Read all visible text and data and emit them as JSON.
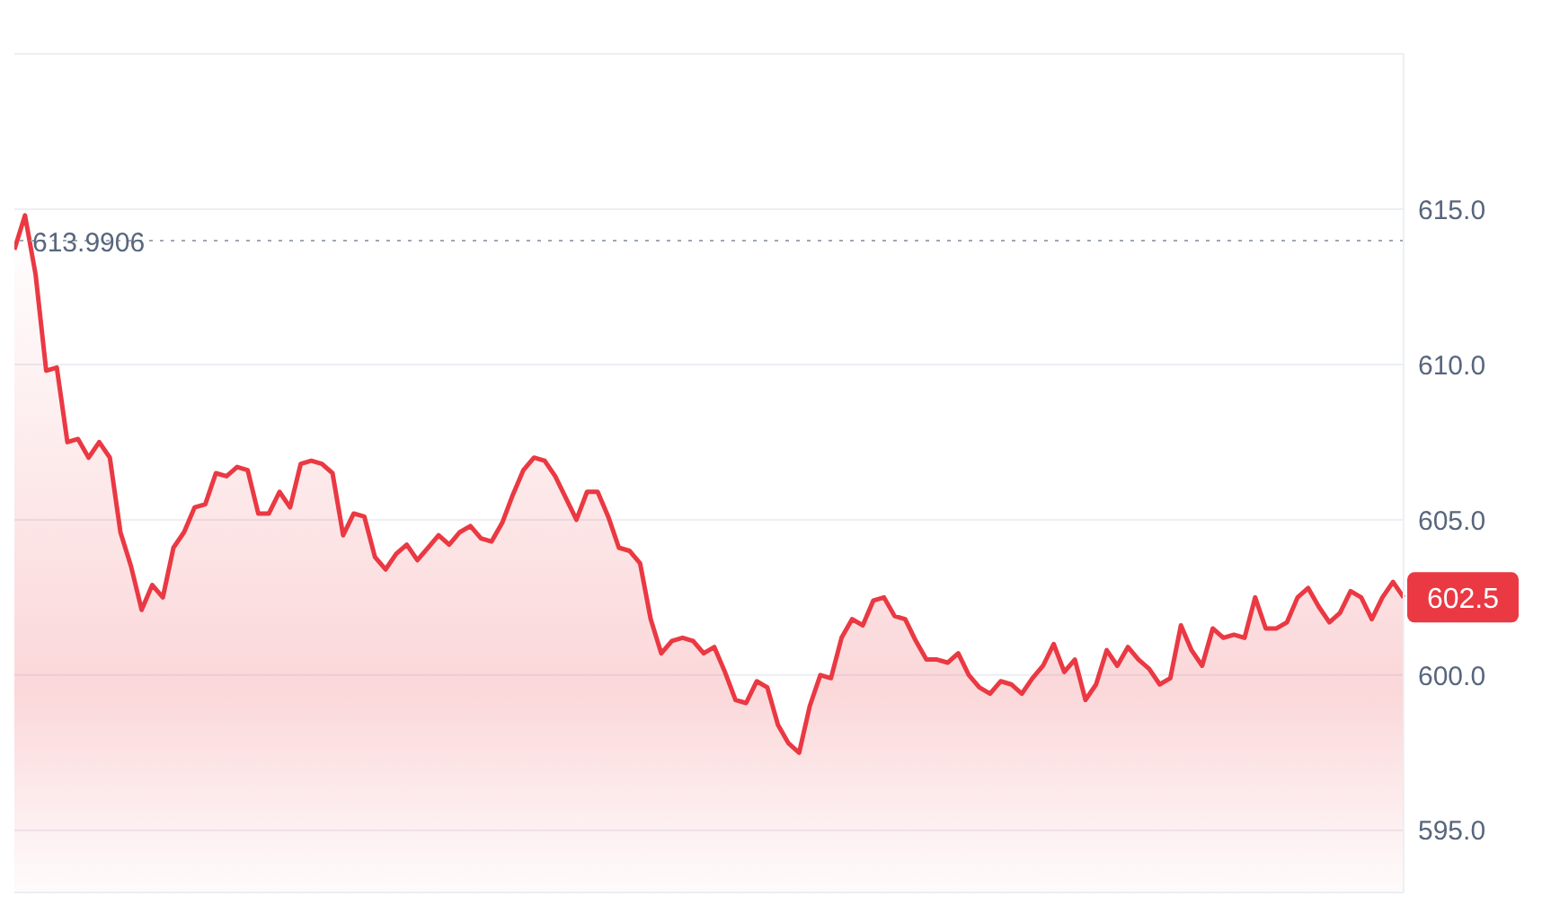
{
  "chart_data": {
    "type": "area",
    "categories": [
      null,
      null,
      null,
      null,
      null,
      null,
      null,
      null,
      null,
      null,
      null,
      null,
      null,
      null,
      null,
      null,
      null,
      null,
      null,
      null,
      null,
      null,
      null,
      null,
      null,
      null,
      null,
      null,
      null,
      null,
      null,
      null,
      null,
      null,
      null,
      null,
      null,
      null,
      null,
      null,
      null,
      null,
      null,
      null,
      null,
      null,
      null,
      null,
      null,
      null,
      null,
      null,
      null,
      null,
      null,
      null,
      null,
      null,
      null,
      null,
      null,
      null,
      null,
      null,
      null,
      null,
      null,
      null,
      null,
      null,
      null,
      null,
      null,
      null,
      null,
      null,
      null,
      null,
      null,
      null,
      null,
      null,
      null,
      null,
      null,
      null,
      null,
      null,
      null,
      null,
      null,
      null,
      null,
      null,
      null,
      null,
      null,
      null,
      null,
      null,
      null,
      null,
      null,
      null,
      null,
      null,
      null,
      null,
      null,
      null,
      null,
      null,
      null,
      null,
      null,
      null,
      null,
      null,
      null,
      null,
      null,
      null,
      null,
      null,
      null,
      null,
      null,
      null,
      null,
      null,
      null,
      null
    ],
    "series": [
      {
        "color": "#ea3943",
        "values": [
          613.7,
          614.8,
          612.9,
          609.8,
          609.9,
          607.5,
          607.6,
          607.0,
          607.5,
          607.0,
          604.6,
          603.5,
          602.1,
          602.9,
          602.5,
          604.1,
          604.6,
          605.4,
          605.5,
          606.5,
          606.4,
          606.7,
          606.6,
          605.2,
          605.2,
          605.9,
          605.4,
          606.8,
          606.9,
          606.8,
          606.5,
          604.5,
          605.2,
          605.1,
          603.8,
          603.4,
          603.9,
          604.2,
          603.7,
          604.1,
          604.5,
          604.2,
          604.6,
          604.8,
          604.4,
          604.3,
          604.9,
          605.8,
          606.6,
          607.0,
          606.9,
          606.4,
          605.7,
          605.0,
          605.9,
          605.9,
          605.1,
          604.1,
          604.0,
          603.6,
          601.8,
          600.7,
          601.1,
          601.2,
          601.1,
          600.7,
          600.9,
          600.1,
          599.2,
          599.1,
          599.8,
          599.6,
          598.4,
          597.8,
          597.5,
          599.0,
          600.0,
          599.9,
          601.2,
          601.8,
          601.6,
          602.4,
          602.5,
          601.9,
          601.8,
          601.1,
          600.5,
          600.5,
          600.4,
          600.7,
          600.0,
          599.6,
          599.4,
          599.8,
          599.7,
          599.4,
          599.9,
          600.3,
          601.0,
          600.1,
          600.5,
          599.2,
          599.7,
          600.8,
          600.3,
          600.9,
          600.5,
          600.2,
          599.7,
          599.9,
          601.6,
          600.8,
          600.3,
          601.5,
          601.2,
          601.3,
          601.2,
          602.5,
          601.5,
          601.5,
          601.7,
          602.5,
          602.8,
          602.2,
          601.7,
          602.0,
          602.7,
          602.5,
          601.8,
          602.5,
          603.0,
          602.5
        ]
      }
    ],
    "ylim": [
      593,
      620
    ],
    "yticks": [
      {
        "value": 595,
        "label": "595.0"
      },
      {
        "value": 600,
        "label": "600.0"
      },
      {
        "value": 605,
        "label": "605.0"
      },
      {
        "value": 610,
        "label": "610.0"
      },
      {
        "value": 615,
        "label": "615.0"
      }
    ],
    "tick_labels": "y",
    "grid": "y",
    "ref_lines": [
      {
        "axis": "y",
        "value": 613.9906,
        "label": "613.9906",
        "line_style": "dotted",
        "color": "#a0a7b4"
      }
    ],
    "annotations": [
      "602.5"
    ]
  }
}
